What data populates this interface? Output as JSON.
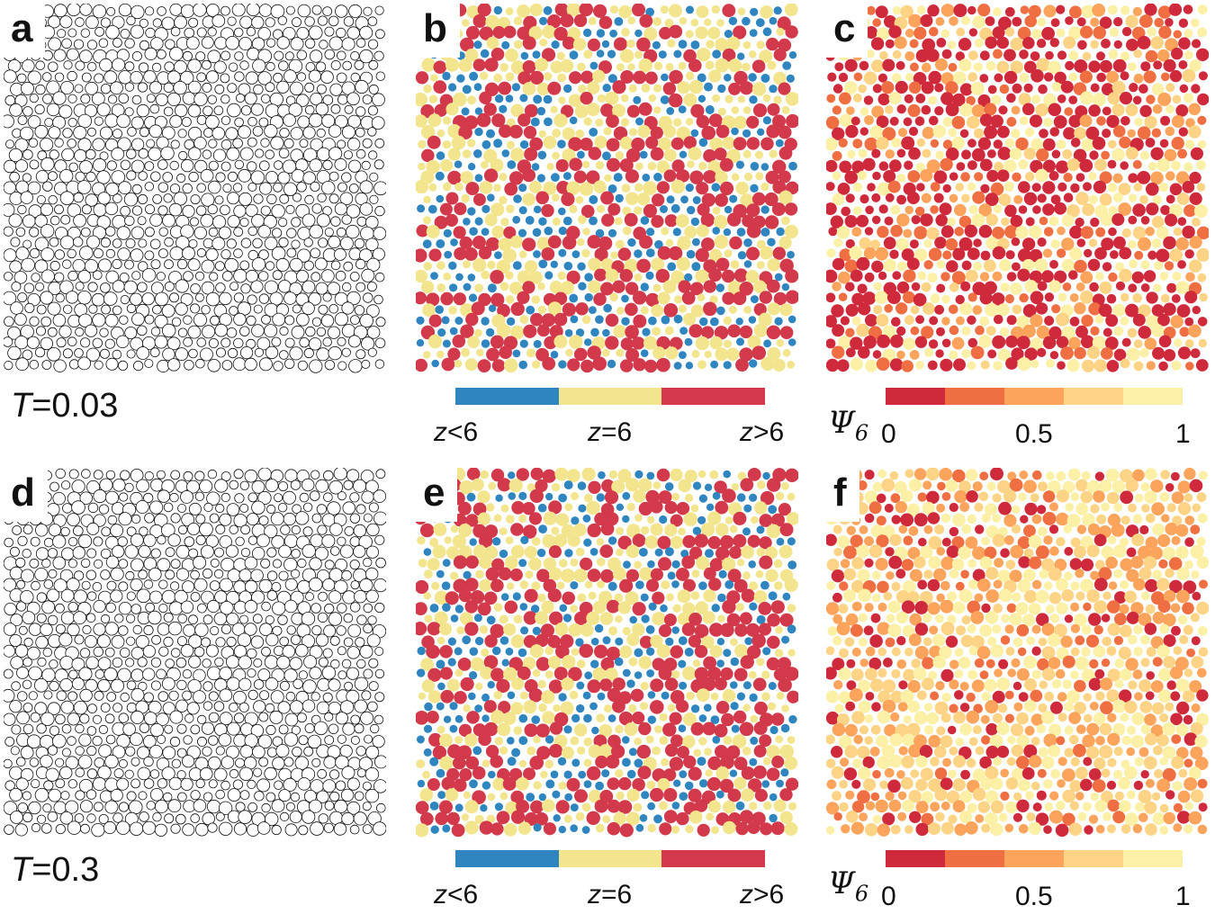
{
  "panels": {
    "a": {
      "letter": "a",
      "style": "outline",
      "seed": 11
    },
    "b": {
      "letter": "b",
      "style": "coord",
      "seed": 23
    },
    "c": {
      "letter": "c",
      "style": "psi",
      "seed": 37,
      "psi_bias": "low"
    },
    "d": {
      "letter": "d",
      "style": "outline",
      "seed": 41
    },
    "e": {
      "letter": "e",
      "style": "coord",
      "seed": 53
    },
    "f": {
      "letter": "f",
      "style": "psi",
      "seed": 67,
      "psi_bias": "high"
    }
  },
  "temperatures": {
    "top": {
      "var": "T",
      "value": "=0.03"
    },
    "bottom": {
      "var": "T",
      "value": "=0.3"
    }
  },
  "coordination_legend": {
    "colors": [
      "#2f85bf",
      "#f3e58e",
      "#d2394a"
    ],
    "labels": [
      {
        "var": "z",
        "rest": "<6"
      },
      {
        "var": "z",
        "rest": "=6"
      },
      {
        "var": "z",
        "rest": ">6"
      }
    ]
  },
  "psi6_legend": {
    "symbol": "Ψ",
    "subscript": "6",
    "colors": [
      "#cf2a3c",
      "#f06f42",
      "#fca35c",
      "#fdd485",
      "#fcf0a6"
    ],
    "ticks": [
      "0",
      "0.5",
      "1"
    ]
  }
}
